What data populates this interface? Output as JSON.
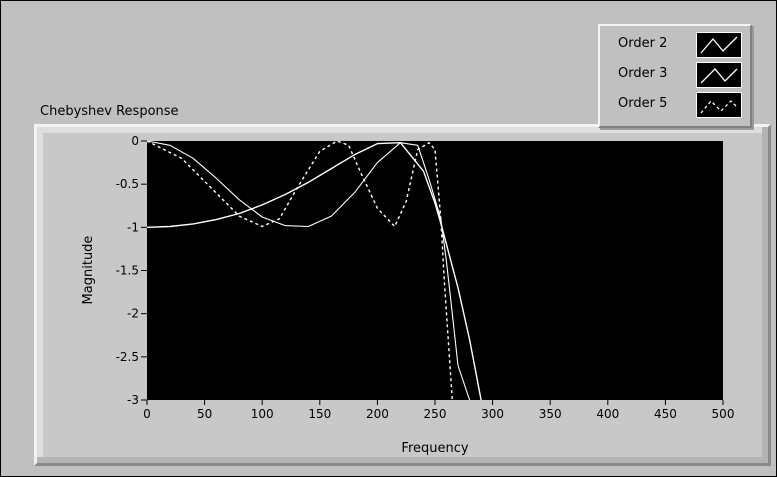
{
  "chart_data": {
    "type": "line",
    "title": "Chebyshev Response",
    "xlabel": "Frequency",
    "ylabel": "Magnitude",
    "xlim": [
      0,
      500
    ],
    "ylim": [
      -3,
      0
    ],
    "xticks": [
      "0",
      "50",
      "100",
      "150",
      "200",
      "250",
      "300",
      "350",
      "400",
      "450",
      "500"
    ],
    "yticks": [
      "0",
      "-0.5",
      "-1",
      "-1.5",
      "-2",
      "-2.5",
      "-3"
    ],
    "grid": false,
    "legend_position": "top-right",
    "background": "#000000",
    "line_color": "#ffffff",
    "series": [
      {
        "name": "Order 2",
        "style": "solid",
        "x": [
          0,
          20,
          40,
          60,
          80,
          100,
          120,
          140,
          160,
          180,
          200,
          220,
          240,
          250,
          255,
          260,
          270,
          280,
          290
        ],
        "y": [
          -1.0,
          -0.99,
          -0.96,
          -0.91,
          -0.84,
          -0.74,
          -0.62,
          -0.48,
          -0.32,
          -0.16,
          -0.03,
          -0.02,
          -0.35,
          -0.72,
          -0.95,
          -1.2,
          -1.7,
          -2.3,
          -3.0
        ]
      },
      {
        "name": "Order 3",
        "style": "solid-light",
        "x": [
          0,
          20,
          40,
          60,
          80,
          100,
          120,
          140,
          160,
          180,
          200,
          220,
          235,
          245,
          255,
          260,
          265,
          270,
          280
        ],
        "y": [
          0.0,
          -0.05,
          -0.2,
          -0.43,
          -0.68,
          -0.88,
          -0.98,
          -0.99,
          -0.87,
          -0.6,
          -0.25,
          -0.02,
          -0.05,
          -0.45,
          -0.9,
          -1.4,
          -2.0,
          -2.6,
          -3.0
        ]
      },
      {
        "name": "Order 5",
        "style": "dashed",
        "x": [
          0,
          30,
          60,
          80,
          100,
          115,
          130,
          150,
          165,
          175,
          185,
          200,
          215,
          225,
          235,
          245,
          250,
          255,
          258,
          262,
          265
        ],
        "y": [
          0.0,
          -0.2,
          -0.6,
          -0.87,
          -0.99,
          -0.9,
          -0.55,
          -0.12,
          0.0,
          -0.05,
          -0.35,
          -0.78,
          -0.99,
          -0.7,
          -0.1,
          -0.02,
          -0.1,
          -0.9,
          -1.6,
          -2.4,
          -3.0
        ]
      }
    ]
  }
}
